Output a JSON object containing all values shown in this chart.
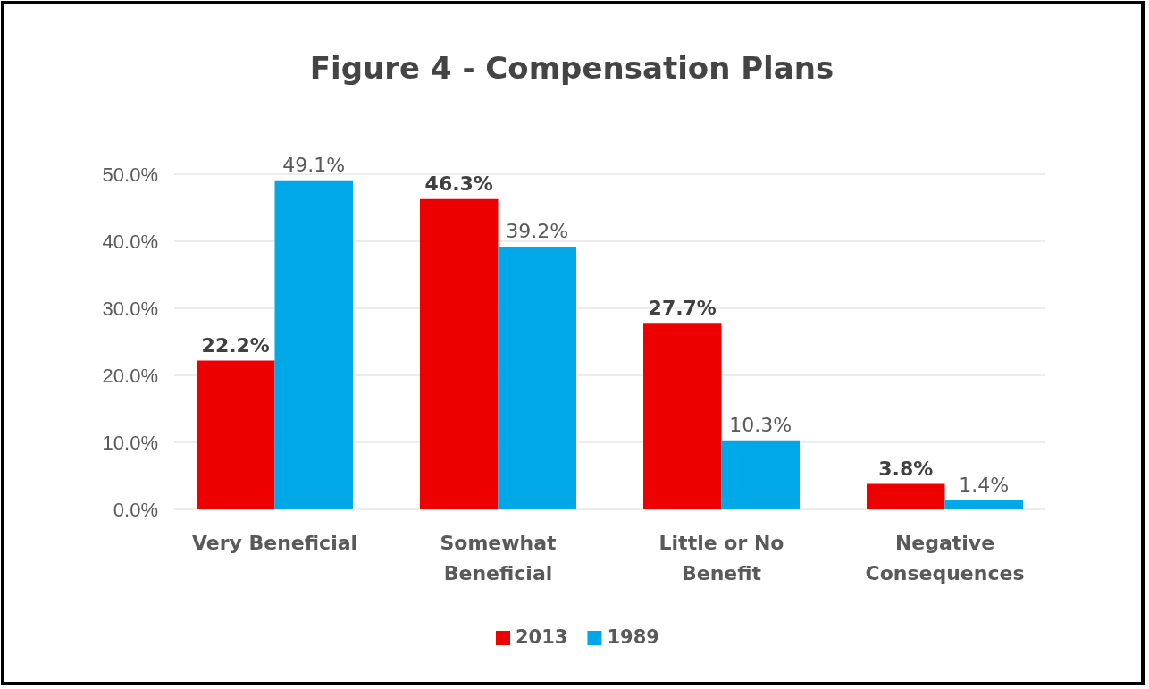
{
  "chart_data": {
    "type": "bar",
    "title": "Figure 4 - Compensation Plans",
    "categories": [
      "Very Beneficial",
      "Somewhat Beneficial",
      "Little or No Benefit",
      "Negative Consequences"
    ],
    "series": [
      {
        "name": "2013",
        "color": "#ee0000",
        "values": [
          22.2,
          46.3,
          27.7,
          3.8
        ],
        "value_labels": [
          "22.2%",
          "46.3%",
          "27.7%",
          "3.8%"
        ]
      },
      {
        "name": "1989",
        "color": "#00a8e8",
        "values": [
          49.1,
          39.2,
          10.3,
          1.4
        ],
        "value_labels": [
          "49.1%",
          "39.2%",
          "10.3%",
          "1.4%"
        ]
      }
    ],
    "ylim": [
      0,
      50
    ],
    "yticks": [
      {
        "value": 0,
        "label": "0.0%"
      },
      {
        "value": 10,
        "label": "10.0%"
      },
      {
        "value": 20,
        "label": "20.0%"
      },
      {
        "value": 30,
        "label": "30.0%"
      },
      {
        "value": 40,
        "label": "40.0%"
      },
      {
        "value": 50,
        "label": "50.0%"
      }
    ],
    "grid": "y",
    "legend": "bottom"
  }
}
